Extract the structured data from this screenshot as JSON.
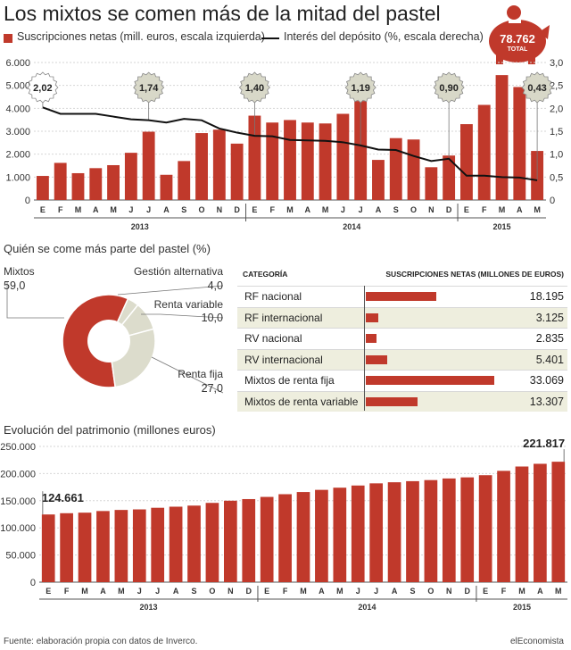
{
  "title": "Los mixtos se comen más de la mitad del pastel",
  "legend": {
    "bars": "Suscripciones netas (mill. euros, escala izquierda)",
    "line": "Interés del depósito (%, escala derecha)"
  },
  "badge": {
    "value": "78.762",
    "label": "TOTAL"
  },
  "colors": {
    "bar": "#c0392b",
    "line": "#111111",
    "pie_light": "#dcdccc",
    "row_alt": "#eeeede"
  },
  "section2_title": "Quién se come más parte del pastel (%)",
  "section3_title": "Evolución del patrimonio (millones euros)",
  "table_headers": {
    "category": "CATEGORÍA",
    "value": "SUSCRIPCIONES NETAS (MILLONES DE EUROS)"
  },
  "footer": {
    "source": "Fuente: elaboración propia con datos de Inverco.",
    "brand": "elEconomista"
  },
  "chart_data": [
    {
      "type": "bar",
      "categories": [
        "E",
        "F",
        "M",
        "A",
        "M",
        "J",
        "J",
        "A",
        "S",
        "O",
        "N",
        "D",
        "E",
        "F",
        "M",
        "A",
        "M",
        "J",
        "J",
        "A",
        "S",
        "O",
        "N",
        "D",
        "E",
        "F",
        "M",
        "A",
        "M"
      ],
      "year_labels": [
        "2013",
        "2014",
        "2015"
      ],
      "series": [
        {
          "values": [
            1050,
            1620,
            1170,
            1390,
            1520,
            2060,
            2980,
            1100,
            1700,
            2920,
            3070,
            2460,
            3680,
            3380,
            3490,
            3380,
            3340,
            3760,
            4320,
            1750,
            2700,
            2640,
            1430,
            1940,
            3310,
            4150,
            5450,
            4930,
            2140
          ]
        },
        {
          "values": [
            2.02,
            1.88,
            1.88,
            1.88,
            1.82,
            1.76,
            1.74,
            1.69,
            1.77,
            1.74,
            1.56,
            1.47,
            1.4,
            1.39,
            1.31,
            1.3,
            1.29,
            1.26,
            1.19,
            1.1,
            1.09,
            0.96,
            0.85,
            0.9,
            0.53,
            0.53,
            0.5,
            0.49,
            0.43
          ]
        }
      ],
      "callouts": [
        {
          "label": "2,02",
          "value": 2.02,
          "index": 0
        },
        {
          "label": "1,74",
          "value": 1.74,
          "index": 6
        },
        {
          "label": "1,40",
          "value": 1.4,
          "index": 12
        },
        {
          "label": "1,19",
          "value": 1.19,
          "index": 18
        },
        {
          "label": "0,90",
          "value": 0.9,
          "index": 23
        },
        {
          "label": "0,43",
          "value": 0.43,
          "index": 28
        }
      ],
      "ylim": [
        0,
        6000
      ],
      "y_ticks": [
        "0",
        "1.000",
        "2.000",
        "3.000",
        "4.000",
        "5.000",
        "6.000"
      ],
      "y2lim": [
        0,
        3.0
      ],
      "y2_ticks": [
        "0",
        "0,5",
        "1,0",
        "1,5",
        "2,0",
        "2,5",
        "3,0"
      ],
      "grid": true
    },
    {
      "type": "pie",
      "donut": true,
      "slices": [
        {
          "label": "Mixtos",
          "display": "59,0",
          "value": 59.0,
          "color": "#c0392b"
        },
        {
          "label": "Gestión alternativa",
          "display": "4,0",
          "value": 4.0,
          "color": "#dcdccc"
        },
        {
          "label": "Renta variable",
          "display": "10,0",
          "value": 10.0,
          "color": "#dcdccc"
        },
        {
          "label": "Renta fija",
          "display": "27,0",
          "value": 27.0,
          "color": "#dcdccc"
        }
      ]
    },
    {
      "type": "table",
      "rows": [
        {
          "label": "RF nacional",
          "display": "18.195",
          "value": 18195
        },
        {
          "label": "RF internacional",
          "display": "3.125",
          "value": 3125
        },
        {
          "label": "RV nacional",
          "display": "2.835",
          "value": 2835
        },
        {
          "label": "RV internacional",
          "display": "5.401",
          "value": 5401
        },
        {
          "label": "Mixtos de renta fija",
          "display": "33.069",
          "value": 33069
        },
        {
          "label": "Mixtos de renta variable",
          "display": "13.307",
          "value": 13307
        }
      ]
    },
    {
      "type": "bar",
      "categories": [
        "E",
        "F",
        "M",
        "A",
        "M",
        "J",
        "J",
        "A",
        "S",
        "O",
        "N",
        "D",
        "E",
        "F",
        "M",
        "A",
        "M",
        "J",
        "J",
        "A",
        "S",
        "O",
        "N",
        "D",
        "E",
        "F",
        "M",
        "A",
        "M"
      ],
      "year_labels": [
        "2013",
        "2014",
        "2015"
      ],
      "values": [
        124661,
        127000,
        128000,
        131000,
        133000,
        134000,
        137000,
        139000,
        141000,
        146000,
        150000,
        153000,
        157000,
        162000,
        166000,
        170000,
        174000,
        178000,
        182000,
        184000,
        186000,
        188000,
        191000,
        193000,
        197000,
        205000,
        213000,
        218000,
        221817
      ],
      "first_label": "124.661",
      "last_label": "221.817",
      "ylim": [
        0,
        250000
      ],
      "y_ticks": [
        "0",
        "50.000",
        "100.000",
        "150.000",
        "200.000",
        "250.000"
      ],
      "grid": true
    }
  ]
}
